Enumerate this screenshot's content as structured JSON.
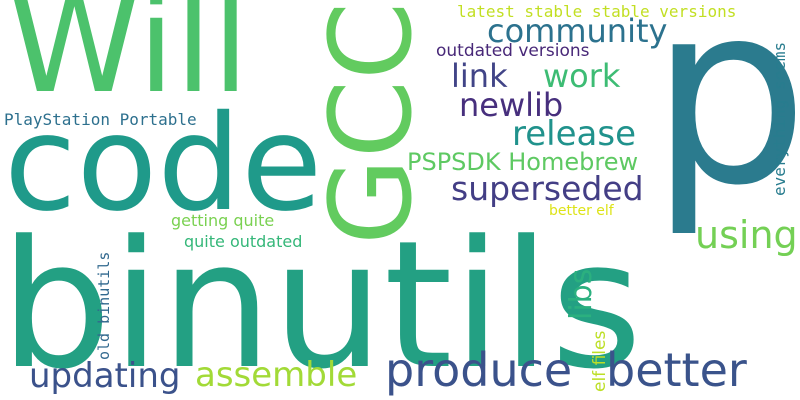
{
  "words": [
    {
      "text": "binutils",
      "color": "#23a083"
    },
    {
      "text": "code",
      "color": "#1f9a8a"
    },
    {
      "text": "Will",
      "color": "#4cc26c"
    },
    {
      "text": "GCC",
      "color": "#62cb5f"
    },
    {
      "text": "p",
      "color": "#2b7b8e"
    },
    {
      "text": "produce",
      "color": "#3b528b"
    },
    {
      "text": "better",
      "color": "#3a538b"
    },
    {
      "text": "updating",
      "color": "#3b528b"
    },
    {
      "text": "assemble",
      "color": "#a2da37"
    },
    {
      "text": "using",
      "color": "#74d055"
    },
    {
      "text": "libs",
      "color": "#2bb07f"
    },
    {
      "text": "superseded",
      "color": "#433e85"
    },
    {
      "text": "PSPSDK Homebrew",
      "color": "#5ec962"
    },
    {
      "text": "release",
      "color": "#20928c"
    },
    {
      "text": "newlib",
      "color": "#472f7d"
    },
    {
      "text": "link",
      "color": "#414487"
    },
    {
      "text": "work",
      "color": "#3dbc74"
    },
    {
      "text": "community",
      "color": "#2c728e"
    },
    {
      "text": "outdated versions",
      "color": "#482878"
    },
    {
      "text": "latest stable stable versions",
      "color": "#c2df23"
    },
    {
      "text": "PlayStation Portable",
      "color": "#2d708e"
    },
    {
      "text": "getting quite",
      "color": "#7ad151"
    },
    {
      "text": "quite outdated",
      "color": "#35b779"
    },
    {
      "text": "better elf",
      "color": "#dde318"
    },
    {
      "text": "everything seems",
      "color": "#287c8e"
    },
    {
      "text": "old binutils",
      "color": "#31688e"
    },
    {
      "text": "elf files",
      "color": "#bddf26"
    }
  ]
}
